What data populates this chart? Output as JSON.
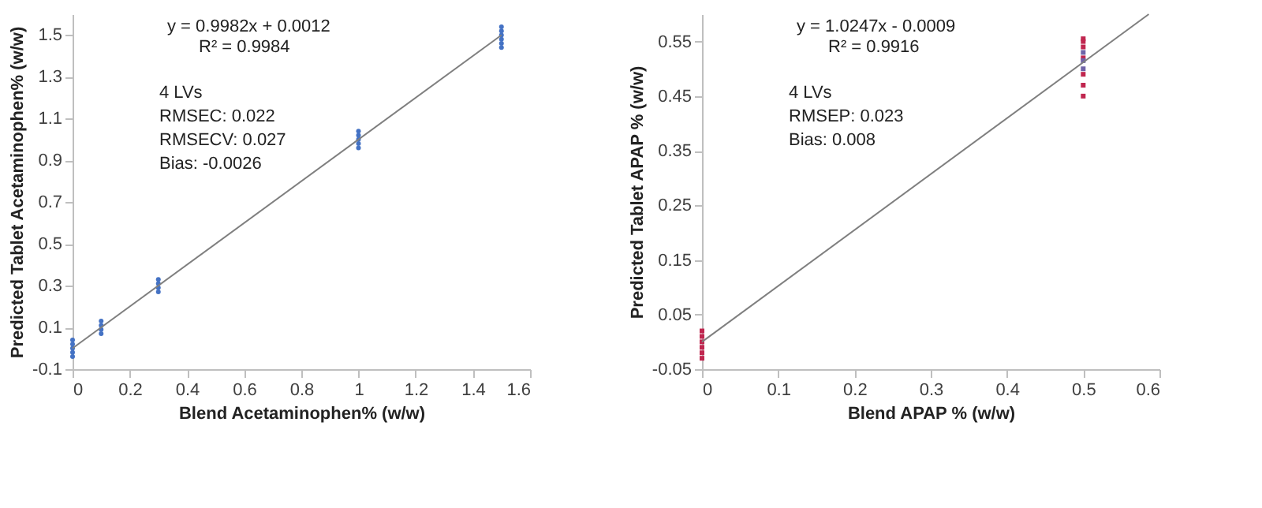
{
  "chart_data": [
    {
      "type": "scatter",
      "xlabel": "Blend Acetaminophen% (w/w)",
      "ylabel": "Predicted Tablet Acetaminophen% (w/w)",
      "xlim": [
        0,
        1.6
      ],
      "xticks": [
        0,
        0.2,
        0.4,
        0.6,
        0.8,
        1,
        1.2,
        1.4,
        1.6
      ],
      "ylim": [
        -0.1,
        1.6
      ],
      "yticks": [
        -0.1,
        0.1,
        0.3,
        0.5,
        0.7,
        0.9,
        1.1,
        1.3,
        1.5
      ],
      "grid": false,
      "legend": false,
      "annotations": [
        "y = 0.9982x + 0.0012",
        "R² = 0.9984",
        "4 LVs",
        "RMSEC: 0.022",
        "RMSECV: 0.027",
        "Bias: -0.0026"
      ],
      "series": [
        {
          "type": "scatter",
          "color": "#4472c4",
          "marker": "circle",
          "x": [
            0,
            0,
            0,
            0,
            0,
            0.1,
            0.1,
            0.1,
            0.1,
            0.3,
            0.3,
            0.3,
            0.3,
            1,
            1,
            1,
            1,
            1,
            1.5,
            1.5,
            1.5,
            1.5,
            1.5,
            1.5
          ],
          "values": [
            -0.04,
            -0.02,
            0,
            0.02,
            0.04,
            0.07,
            0.09,
            0.11,
            0.13,
            0.27,
            0.29,
            0.31,
            0.33,
            0.96,
            0.98,
            1,
            1.02,
            1.04,
            1.44,
            1.46,
            1.48,
            1.5,
            1.52,
            1.54
          ]
        },
        {
          "type": "line",
          "color": "#7f7f7f",
          "marker": "none",
          "line_style": "solid",
          "x": [
            0,
            1.5
          ],
          "values": [
            0,
            1.5
          ]
        }
      ]
    },
    {
      "type": "scatter",
      "xlabel": "Blend APAP % (w/w)",
      "ylabel": "Predicted Tablet APAP % (w/w)",
      "xlim": [
        0,
        0.6
      ],
      "xticks": [
        0,
        0.1,
        0.2,
        0.3,
        0.4,
        0.5,
        0.6
      ],
      "ylim": [
        -0.05,
        0.6
      ],
      "yticks": [
        -0.05,
        0.05,
        0.15,
        0.25,
        0.35,
        0.45,
        0.55
      ],
      "grid": false,
      "legend": false,
      "annotations": [
        "y = 1.0247x - 0.0009",
        "R² = 0.9916",
        "4 LVs",
        "RMSEP: 0.023",
        "Bias: 0.008"
      ],
      "series": [
        {
          "type": "scatter",
          "color": "#c0264f",
          "marker": "square",
          "x": [
            0,
            0,
            0,
            0,
            0,
            0,
            0.5,
            0.5,
            0.5,
            0.5,
            0.5,
            0.5,
            0.5
          ],
          "values": [
            -0.03,
            -0.02,
            -0.01,
            0,
            0.01,
            0.02,
            0.45,
            0.47,
            0.49,
            0.52,
            0.54,
            0.55,
            0.555
          ]
        },
        {
          "type": "scatter",
          "color": "#6f63a8",
          "marker": "square",
          "x": [
            0.5,
            0.5,
            0.5
          ],
          "values": [
            0.5,
            0.515,
            0.53
          ]
        },
        {
          "type": "line",
          "color": "#7f7f7f",
          "marker": "none",
          "line_style": "solid",
          "x": [
            0,
            0.586
          ],
          "values": [
            0,
            0.6
          ]
        }
      ]
    }
  ]
}
